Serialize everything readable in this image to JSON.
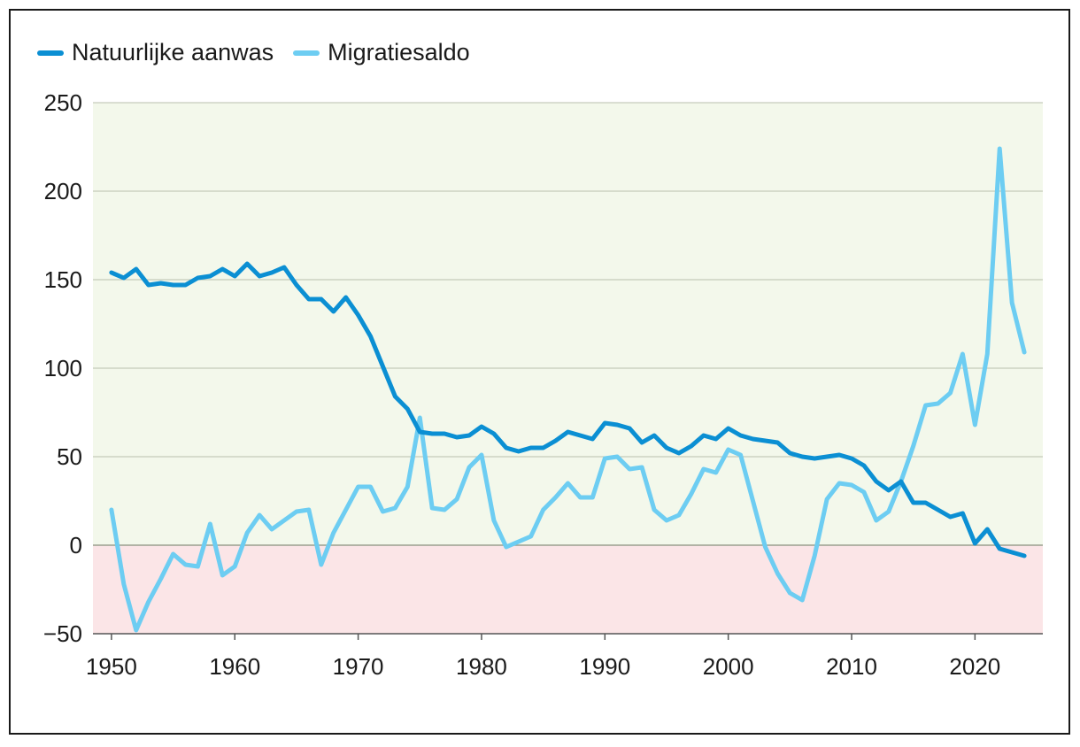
{
  "colors": {
    "positive_zone": "#f3f8eb",
    "negative_zone": "#fbe5e7",
    "gridline": "#b9bfae",
    "zero_line": "#9aa08f",
    "axis": "#555555",
    "series_1": "#0b8fd3",
    "series_2": "#6dcdf2"
  },
  "chart_data": {
    "type": "line",
    "title": "",
    "xlabel": "",
    "ylabel": "",
    "xlim": [
      1948.5,
      2025.5
    ],
    "ylim": [
      -50,
      250
    ],
    "x_ticks": [
      1950,
      1960,
      1970,
      1980,
      1990,
      2000,
      2010,
      2020
    ],
    "y_ticks": [
      250,
      200,
      150,
      100,
      50,
      0,
      -50
    ],
    "x_tick_labels": [
      "1950",
      "1960",
      "1970",
      "1980",
      "1990",
      "2000",
      "2010",
      "2020"
    ],
    "y_tick_labels": [
      "250",
      "200",
      "150",
      "100",
      "50",
      "0",
      "−50"
    ],
    "grid": true,
    "legend_position": "top-left",
    "x": [
      1950,
      1951,
      1952,
      1953,
      1954,
      1955,
      1956,
      1957,
      1958,
      1959,
      1960,
      1961,
      1962,
      1963,
      1964,
      1965,
      1966,
      1967,
      1968,
      1969,
      1970,
      1971,
      1972,
      1973,
      1974,
      1975,
      1976,
      1977,
      1978,
      1979,
      1980,
      1981,
      1982,
      1983,
      1984,
      1985,
      1986,
      1987,
      1988,
      1989,
      1990,
      1991,
      1992,
      1993,
      1994,
      1995,
      1996,
      1997,
      1998,
      1999,
      2000,
      2001,
      2002,
      2003,
      2004,
      2005,
      2006,
      2007,
      2008,
      2009,
      2010,
      2011,
      2012,
      2013,
      2014,
      2015,
      2016,
      2017,
      2018,
      2019,
      2020,
      2021,
      2022,
      2023,
      2024
    ],
    "series": [
      {
        "name": "Natuurlijke aanwas",
        "color": "#0b8fd3",
        "values": [
          154,
          151,
          156,
          147,
          148,
          147,
          147,
          151,
          152,
          156,
          152,
          159,
          152,
          154,
          157,
          147,
          139,
          139,
          132,
          140,
          130,
          118,
          101,
          84,
          77,
          64,
          63,
          63,
          61,
          62,
          67,
          63,
          55,
          53,
          55,
          55,
          59,
          64,
          62,
          60,
          69,
          68,
          66,
          58,
          62,
          55,
          52,
          56,
          62,
          60,
          66,
          62,
          60,
          59,
          58,
          52,
          50,
          49,
          50,
          51,
          49,
          45,
          36,
          31,
          36,
          24,
          24,
          20,
          16,
          18,
          1,
          9,
          -2,
          -4,
          -6
        ]
      },
      {
        "name": "Migratiesaldo",
        "color": "#6dcdf2",
        "values": [
          20,
          -22,
          -48,
          -32,
          -19,
          -5,
          -11,
          -12,
          12,
          -17,
          -12,
          7,
          17,
          9,
          14,
          19,
          20,
          -11,
          7,
          20,
          33,
          33,
          19,
          21,
          33,
          72,
          21,
          20,
          26,
          44,
          51,
          14,
          -1,
          2,
          5,
          20,
          27,
          35,
          27,
          27,
          49,
          50,
          43,
          44,
          20,
          14,
          17,
          29,
          43,
          41,
          54,
          51,
          25,
          -1,
          -16,
          -27,
          -31,
          -6,
          26,
          35,
          34,
          30,
          14,
          19,
          36,
          56,
          79,
          80,
          86,
          108,
          68,
          108,
          224,
          137,
          109
        ]
      }
    ]
  }
}
